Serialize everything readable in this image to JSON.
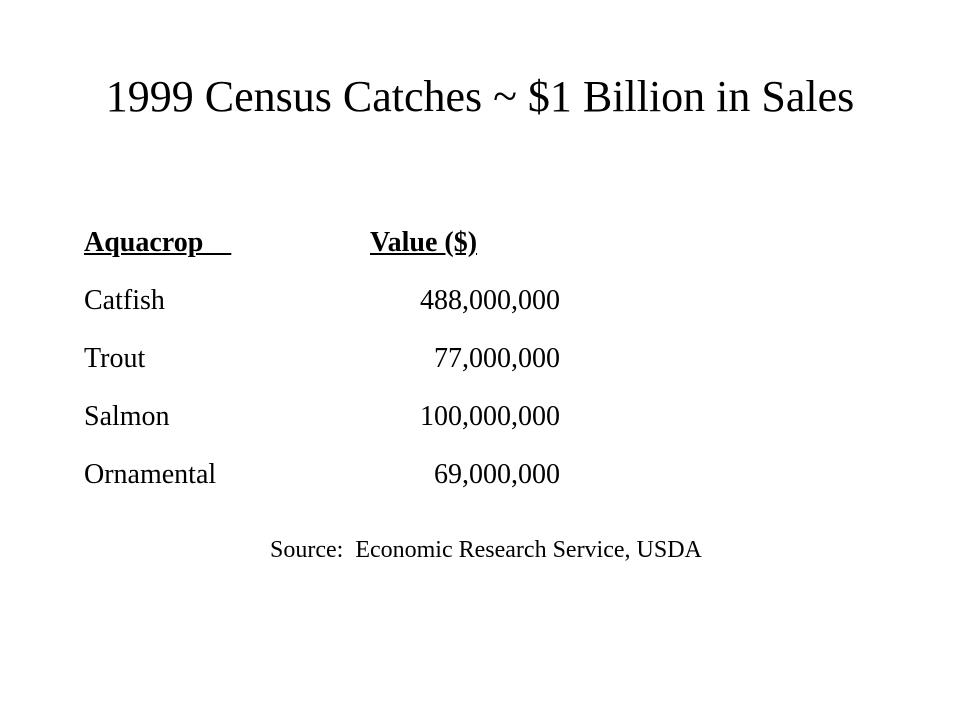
{
  "slide": {
    "title": "1999 Census Catches ~ $1 Billion in Sales",
    "table": {
      "headers": {
        "crop": "Aquacrop    ",
        "value": "Value ($)"
      },
      "rows": [
        {
          "crop": "Catfish",
          "value": "488,000,000"
        },
        {
          "crop": "Trout",
          "value": "77,000,000"
        },
        {
          "crop": "Salmon",
          "value": "100,000,000"
        },
        {
          "crop": "Ornamental",
          "value": "69,000,000"
        }
      ]
    },
    "source": "Source:  Economic Research Service, USDA"
  }
}
